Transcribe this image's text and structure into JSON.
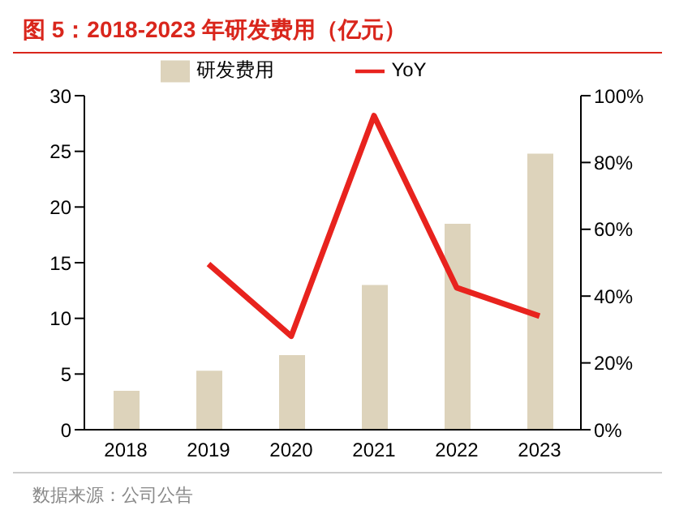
{
  "chart_data": {
    "type": "bar",
    "title": "图 5：2018-2023 年研发费用（亿元）",
    "categories": [
      "2018",
      "2019",
      "2020",
      "2021",
      "2022",
      "2023"
    ],
    "series": [
      {
        "name": "研发费用",
        "color": "#ddd3bb",
        "values": [
          3.5,
          5.3,
          6.7,
          13.0,
          18.5,
          24.8
        ]
      },
      {
        "name": "YoY",
        "type": "line",
        "axis": "y2",
        "color": "#e8231e",
        "values": [
          null,
          49.6,
          28,
          94,
          42.5,
          34
        ]
      }
    ],
    "ylim": [
      0,
      30
    ],
    "yticks": [
      0,
      5,
      10,
      15,
      20,
      25,
      30
    ],
    "y2lim": [
      0,
      100
    ],
    "y2ticks": [
      {
        "value": 0,
        "label": "0%"
      },
      {
        "value": 20,
        "label": "20%"
      },
      {
        "value": 40,
        "label": "40%"
      },
      {
        "value": 60,
        "label": "60%"
      },
      {
        "value": 80,
        "label": "80%"
      },
      {
        "value": 100,
        "label": "100%"
      }
    ],
    "grid": false,
    "legend": "top",
    "marker": "none",
    "annotations": [
      "数据来源：公司公告"
    ]
  }
}
